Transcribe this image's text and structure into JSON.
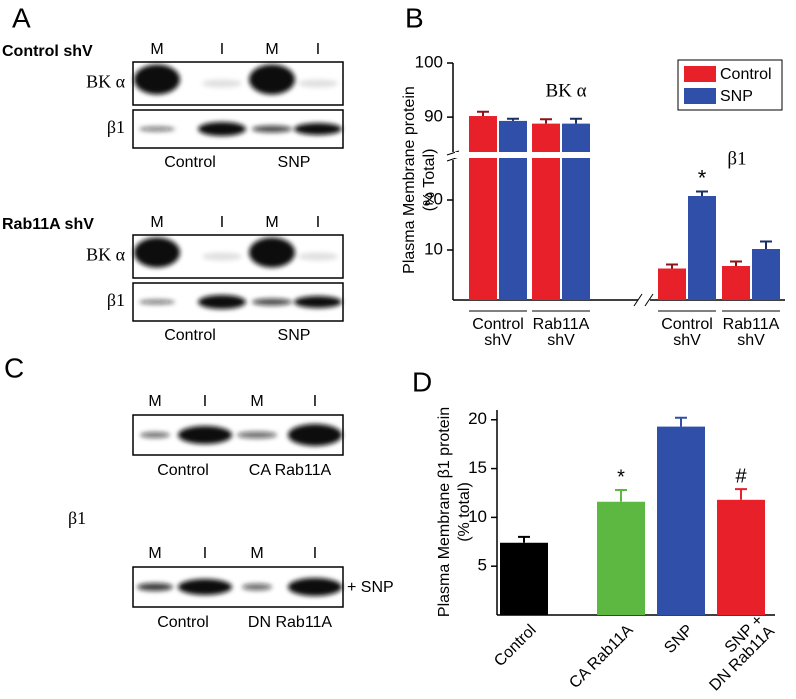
{
  "panels": {
    "A": {
      "label": "A",
      "blocks": [
        {
          "title": "Control shV",
          "lanes": [
            "M",
            "I",
            "M",
            "I"
          ],
          "rows": [
            "BK α",
            "β1"
          ],
          "conditions": [
            "Control",
            "SNP"
          ]
        },
        {
          "title": "Rab11A shV",
          "lanes": [
            "M",
            "I",
            "M",
            "I"
          ],
          "rows": [
            "BK α",
            "β1"
          ],
          "conditions": [
            "Control",
            "SNP"
          ]
        }
      ]
    },
    "C": {
      "label": "C",
      "row_label": "β1",
      "blocks": [
        {
          "lanes": [
            "M",
            "I",
            "M",
            "I"
          ],
          "conditions": [
            "Control",
            "CA Rab11A"
          ]
        },
        {
          "lanes": [
            "M",
            "I",
            "M",
            "I"
          ],
          "conditions": [
            "Control",
            "DN Rab11A"
          ],
          "note": "+ SNP"
        }
      ]
    }
  },
  "chart_data": [
    {
      "panel_label": "B",
      "type": "bar",
      "ylabel": [
        "Plasma Membrane protein",
        "(% Total)"
      ],
      "categories": [
        [
          "Control",
          "shV"
        ],
        [
          "Rab11A",
          "shV"
        ],
        [
          "Control",
          "shV"
        ],
        [
          "Rab11A",
          "shV"
        ]
      ],
      "group_labels": [
        "BK α",
        "β1"
      ],
      "series": [
        {
          "name": "Control",
          "color": "#e8202a",
          "values": [
            90.2,
            88.8,
            6.3,
            6.8
          ],
          "errors": [
            0.8,
            0.8,
            0.8,
            0.9
          ],
          "significance": [
            null,
            null,
            null,
            null
          ]
        },
        {
          "name": "SNP",
          "color": "#2f4fa8",
          "values": [
            89.3,
            88.8,
            20.8,
            10.2
          ],
          "errors": [
            0.4,
            0.9,
            0.9,
            1.5
          ],
          "significance": [
            null,
            null,
            "*",
            null
          ]
        }
      ],
      "ylim": [
        0,
        100
      ],
      "ybreak": [
        28,
        83
      ],
      "yticks": [
        10,
        20,
        90,
        100
      ],
      "legend": "upper right"
    },
    {
      "panel_label": "D",
      "type": "bar",
      "ylabel": [
        "Plasma Membrane β1 protein",
        "(% total)"
      ],
      "categories": [
        [
          "Control"
        ],
        [
          "CA Rab11A"
        ],
        [
          "SNP"
        ],
        [
          "SNP +",
          "DN Rab11A"
        ]
      ],
      "values": [
        7.4,
        11.6,
        19.3,
        11.8
      ],
      "errors": [
        0.6,
        1.2,
        0.9,
        1.1
      ],
      "colors": [
        "#000000",
        "#5cb840",
        "#2f4fa8",
        "#e8202a"
      ],
      "significance": [
        null,
        "*",
        null,
        "#"
      ],
      "ylim": [
        0,
        21
      ],
      "yticks": [
        5,
        10,
        15,
        20
      ]
    }
  ]
}
